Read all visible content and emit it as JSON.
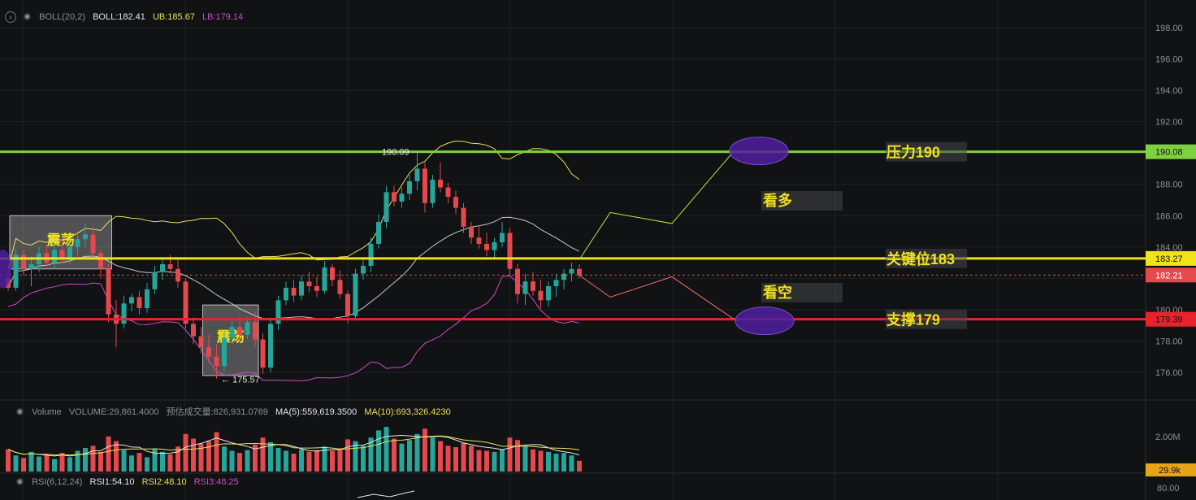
{
  "colors": {
    "background": "#111214",
    "grid": "#1f2124",
    "up": "#26a69a",
    "down": "#e5484d",
    "boll_mid": "#c8c8c8",
    "boll_ub": "#e8e05a",
    "boll_lb": "#d04bc8",
    "resistance": "#7ed23f",
    "key": "#f2e21a",
    "support": "#e8232b",
    "ellipse": "#5a2ba3"
  },
  "boll_legend": {
    "name": "BOLL(20,2)",
    "boll": "BOLL:182.41",
    "ub": "UB:185.67",
    "lb": "LB:179.14"
  },
  "volume_legend": {
    "name": "Volume",
    "volume": "VOLUME:29,861.4000",
    "est": "预估成交量:826,931.0769",
    "ma5": "MA(5):559,619.3500",
    "ma10": "MA(10):693,326.4230"
  },
  "rsi_legend": {
    "name": "RSI(6,12,24)",
    "rsi1": "RSI1:54.10",
    "rsi2": "RSI2:48.10",
    "rsi3": "RSI3:48.25"
  },
  "price_axis": {
    "ticks": [
      "198.00",
      "196.00",
      "194.00",
      "192.00",
      "190.00",
      "188.00",
      "186.00",
      "184.00",
      "182.00",
      "180.00",
      "178.00",
      "176.00"
    ]
  },
  "volume_axis": {
    "tick": "2.00M",
    "current": "29.9k"
  },
  "rsi_axis": {
    "tick": "80.00"
  },
  "chart_data": {
    "type": "candlestick",
    "price_range": [
      175,
      199
    ],
    "levels": [
      {
        "label": "压力190",
        "value": 190.08,
        "tag": "190.08",
        "color": "#7ed23f"
      },
      {
        "label": "关键位183",
        "value": 183.27,
        "tag": "183.27",
        "color": "#f2e21a"
      },
      {
        "label": "支撑179",
        "value": 179.39,
        "tag": "179.39",
        "color": "#e8232b"
      }
    ],
    "last_price": {
      "value": 182.21,
      "tag": "182.21"
    },
    "annotations": {
      "high_label": "190.09",
      "low_label": "← 175.57",
      "range_box_label": "震荡",
      "bull_label": "看多",
      "bear_label": "看空"
    },
    "candles": [
      [
        182.0,
        182.5,
        181.2,
        181.4
      ],
      [
        181.4,
        183.9,
        181.2,
        183.5
      ],
      [
        183.5,
        183.8,
        182.2,
        182.6
      ],
      [
        182.6,
        183.4,
        181.5,
        182.9
      ],
      [
        182.9,
        184.0,
        182.4,
        183.6
      ],
      [
        183.6,
        184.1,
        182.8,
        183.0
      ],
      [
        183.0,
        184.2,
        182.6,
        183.8
      ],
      [
        183.8,
        184.6,
        183.0,
        183.3
      ],
      [
        183.3,
        184.3,
        182.9,
        184.0
      ],
      [
        184.0,
        184.8,
        183.5,
        184.5
      ],
      [
        184.5,
        185.5,
        184.0,
        184.8
      ],
      [
        184.8,
        185.3,
        183.2,
        183.6
      ],
      [
        183.6,
        183.8,
        182.0,
        182.6
      ],
      [
        182.6,
        182.9,
        179.2,
        179.7
      ],
      [
        179.7,
        180.6,
        177.6,
        179.1
      ],
      [
        179.1,
        180.9,
        178.8,
        180.4
      ],
      [
        180.4,
        181.0,
        179.9,
        180.8
      ],
      [
        180.8,
        181.2,
        179.7,
        180.1
      ],
      [
        180.1,
        181.7,
        179.8,
        181.3
      ],
      [
        181.3,
        182.8,
        181.0,
        182.4
      ],
      [
        182.4,
        183.2,
        181.9,
        182.9
      ],
      [
        182.9,
        183.5,
        182.3,
        182.6
      ],
      [
        182.6,
        183.2,
        181.4,
        181.8
      ],
      [
        181.8,
        182.0,
        178.8,
        179.1
      ],
      [
        179.1,
        179.5,
        177.8,
        178.3
      ],
      [
        178.3,
        178.9,
        177.2,
        177.6
      ],
      [
        177.6,
        178.4,
        176.6,
        177.0
      ],
      [
        177.0,
        177.8,
        175.6,
        176.4
      ],
      [
        176.4,
        178.6,
        176.1,
        178.2
      ],
      [
        178.2,
        179.3,
        177.8,
        178.9
      ],
      [
        178.9,
        179.6,
        178.0,
        178.4
      ],
      [
        178.4,
        179.5,
        178.1,
        179.2
      ],
      [
        179.2,
        179.9,
        177.6,
        178.1
      ],
      [
        178.1,
        178.5,
        175.9,
        176.3
      ],
      [
        176.3,
        179.5,
        176.0,
        179.1
      ],
      [
        179.1,
        180.9,
        178.7,
        180.6
      ],
      [
        180.6,
        181.8,
        180.3,
        181.4
      ],
      [
        181.4,
        181.9,
        180.5,
        180.9
      ],
      [
        180.9,
        182.2,
        180.6,
        181.8
      ],
      [
        181.8,
        182.4,
        181.1,
        181.5
      ],
      [
        181.5,
        182.1,
        180.8,
        181.2
      ],
      [
        181.2,
        183.1,
        181.0,
        182.7
      ],
      [
        182.7,
        182.9,
        181.5,
        181.9
      ],
      [
        181.9,
        182.5,
        180.7,
        181.0
      ],
      [
        181.0,
        181.2,
        179.1,
        179.6
      ],
      [
        179.6,
        182.6,
        179.3,
        182.3
      ],
      [
        182.3,
        183.2,
        181.9,
        182.8
      ],
      [
        182.8,
        184.6,
        182.4,
        184.2
      ],
      [
        184.2,
        186.1,
        183.9,
        185.6
      ],
      [
        185.6,
        187.9,
        185.2,
        187.5
      ],
      [
        187.5,
        187.9,
        186.6,
        186.9
      ],
      [
        186.9,
        187.8,
        186.5,
        187.4
      ],
      [
        187.4,
        188.6,
        187.0,
        188.2
      ],
      [
        188.2,
        190.1,
        187.6,
        189.0
      ],
      [
        189.0,
        189.4,
        186.2,
        186.8
      ],
      [
        186.8,
        188.6,
        186.5,
        188.3
      ],
      [
        188.3,
        189.4,
        187.5,
        187.8
      ],
      [
        187.8,
        188.1,
        186.8,
        187.2
      ],
      [
        187.2,
        187.6,
        186.1,
        186.5
      ],
      [
        186.5,
        186.8,
        184.9,
        185.3
      ],
      [
        185.3,
        185.6,
        184.2,
        184.6
      ],
      [
        184.6,
        185.4,
        183.9,
        184.2
      ],
      [
        184.2,
        184.9,
        183.4,
        183.8
      ],
      [
        183.8,
        184.6,
        183.2,
        184.3
      ],
      [
        184.3,
        185.6,
        184.0,
        184.9
      ],
      [
        184.9,
        185.2,
        182.1,
        182.6
      ],
      [
        182.6,
        182.9,
        180.4,
        181.0
      ],
      [
        181.0,
        182.3,
        180.3,
        181.8
      ],
      [
        181.8,
        182.4,
        180.9,
        181.2
      ],
      [
        181.2,
        181.9,
        180.1,
        180.6
      ],
      [
        180.6,
        181.8,
        180.2,
        181.5
      ],
      [
        181.5,
        182.3,
        180.8,
        181.9
      ],
      [
        181.9,
        182.6,
        181.3,
        182.3
      ],
      [
        182.3,
        183.0,
        181.8,
        182.6
      ],
      [
        182.6,
        182.9,
        182.0,
        182.2
      ]
    ],
    "volume": [
      0.62,
      0.45,
      0.38,
      0.55,
      0.42,
      0.48,
      0.35,
      0.52,
      0.4,
      0.58,
      0.66,
      0.72,
      0.55,
      0.98,
      0.85,
      0.6,
      0.45,
      0.52,
      0.4,
      0.62,
      0.55,
      0.48,
      0.7,
      1.05,
      0.92,
      0.78,
      0.85,
      1.1,
      0.7,
      0.58,
      0.52,
      0.6,
      0.75,
      0.95,
      0.82,
      0.66,
      0.58,
      0.5,
      0.62,
      0.55,
      0.6,
      0.7,
      0.58,
      0.65,
      0.9,
      0.85,
      0.72,
      0.95,
      1.15,
      1.25,
      0.92,
      0.78,
      0.88,
      1.05,
      1.2,
      0.95,
      0.85,
      0.72,
      0.68,
      0.8,
      0.72,
      0.6,
      0.58,
      0.55,
      0.62,
      0.95,
      0.88,
      0.7,
      0.62,
      0.58,
      0.55,
      0.5,
      0.52,
      0.45,
      0.3
    ],
    "projection": {
      "bull_path": [
        [
          74,
          183.2
        ],
        [
          78,
          186.2
        ],
        [
          86,
          185.5
        ],
        [
          94,
          190.1
        ]
      ],
      "bear_path": [
        [
          74,
          182.2
        ],
        [
          78,
          180.8
        ],
        [
          86,
          182.1
        ],
        [
          94,
          179.4
        ]
      ]
    }
  }
}
